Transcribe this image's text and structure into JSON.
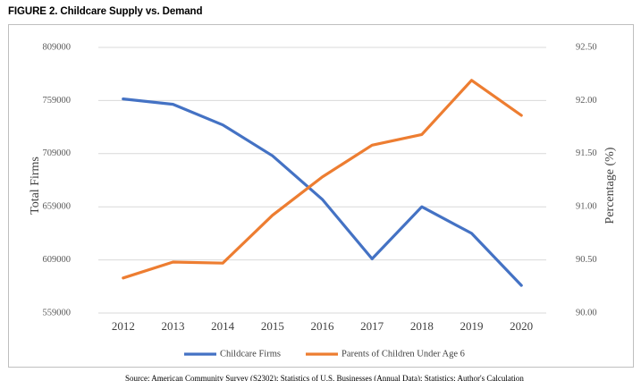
{
  "figure": {
    "title": "FIGURE 2. Childcare Supply vs. Demand",
    "source_note": "Source: American Community Survey (S2302); Statistics of U.S. Businesses (Annual Data); Statistics: Author's Calculation"
  },
  "chart_data": {
    "type": "line",
    "title": "",
    "x": [
      "2012",
      "2013",
      "2014",
      "2015",
      "2016",
      "2017",
      "2018",
      "2019",
      "2020"
    ],
    "xlabel": "",
    "y_left": {
      "label": "Total Firms",
      "ticks": [
        "559000",
        "609000",
        "659000",
        "709000",
        "759000",
        "809000"
      ],
      "range": [
        559000,
        809000
      ]
    },
    "y_right": {
      "label": "Percentage (%)",
      "ticks": [
        "90.00",
        "90.50",
        "91.00",
        "91.50",
        "92.00",
        "92.50"
      ],
      "range": [
        90.0,
        92.5
      ]
    },
    "series": [
      {
        "name": "Childcare Firms",
        "axis": "left",
        "color": "#4472C4",
        "values": [
          760500,
          755500,
          736000,
          707000,
          666000,
          610000,
          659000,
          634000,
          585000
        ]
      },
      {
        "name": "Parents of Children Under Age 6",
        "axis": "right",
        "color": "#ED7D31",
        "values": [
          90.33,
          90.48,
          90.47,
          90.92,
          91.28,
          91.58,
          91.68,
          92.19,
          91.86
        ]
      }
    ],
    "grid": "horizontal",
    "legend": "bottom-center"
  }
}
